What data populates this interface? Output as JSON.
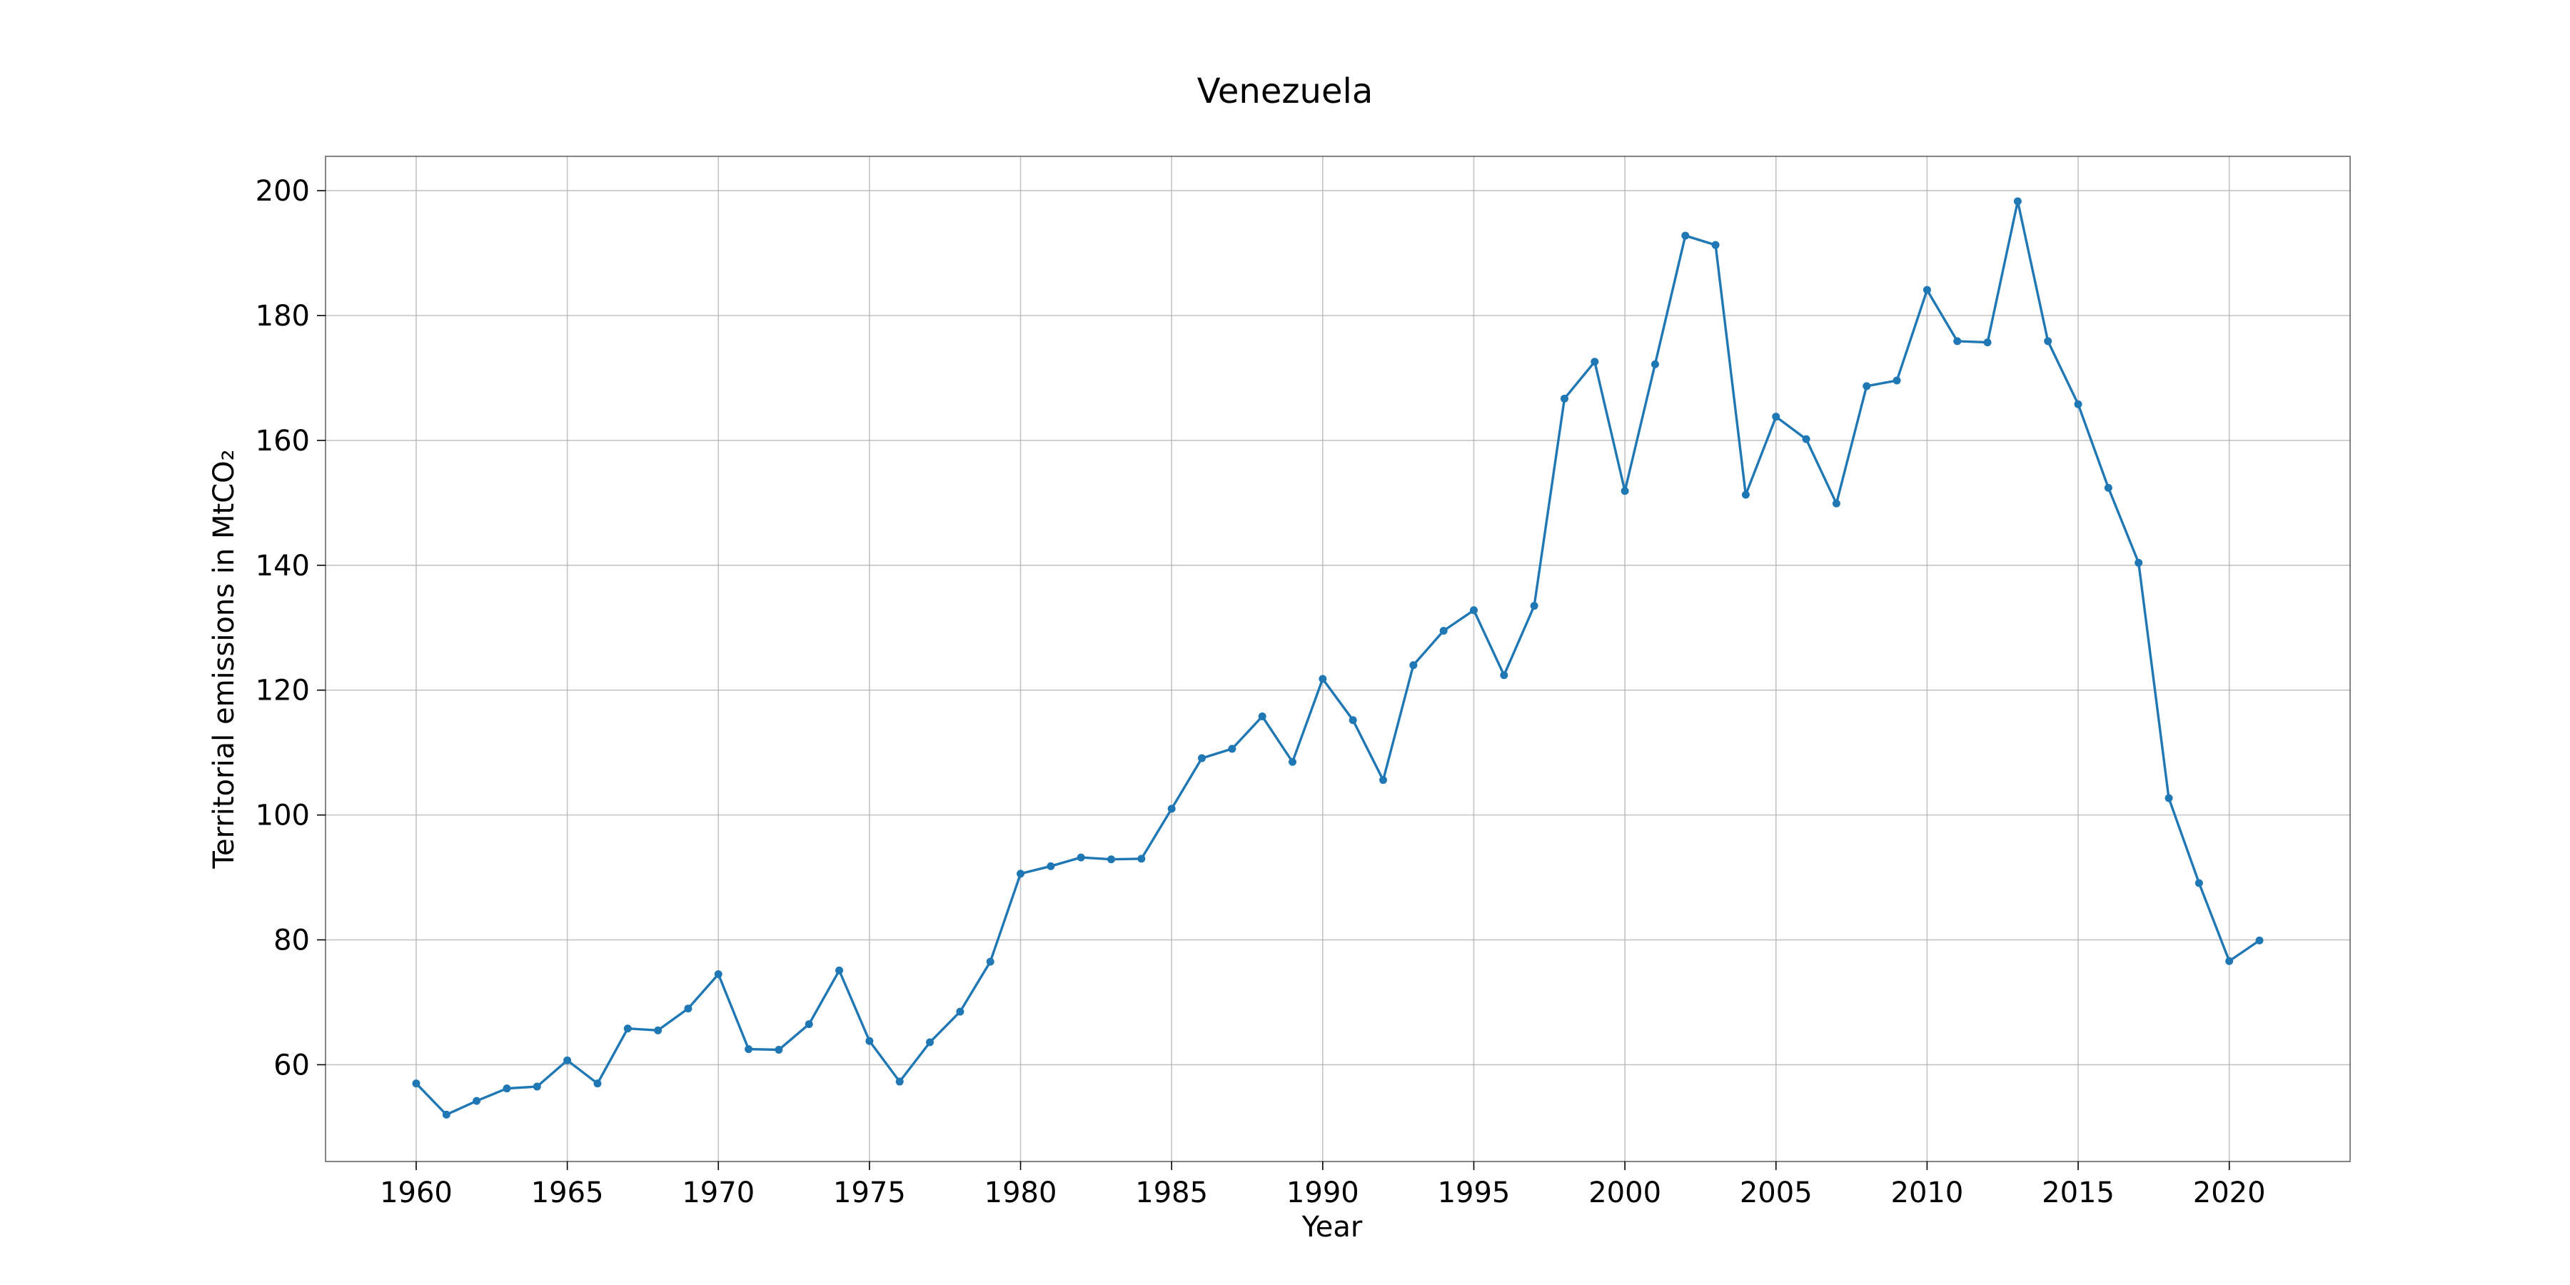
{
  "chart_data": {
    "type": "line",
    "title": "Venezuela",
    "xlabel": "Year",
    "ylabel": "Territorial emissions in MtCO₂",
    "xlim": [
      1957,
      2024
    ],
    "ylim": [
      44.5,
      205.5
    ],
    "xticks": [
      1960,
      1965,
      1970,
      1975,
      1980,
      1985,
      1990,
      1995,
      2000,
      2005,
      2010,
      2015,
      2020
    ],
    "yticks": [
      60,
      80,
      100,
      120,
      140,
      160,
      180,
      200
    ],
    "grid": true,
    "color": "#1f77b4",
    "x": [
      1960,
      1961,
      1962,
      1963,
      1964,
      1965,
      1966,
      1967,
      1968,
      1969,
      1970,
      1971,
      1972,
      1973,
      1974,
      1975,
      1976,
      1977,
      1978,
      1979,
      1980,
      1981,
      1982,
      1983,
      1984,
      1985,
      1986,
      1987,
      1988,
      1989,
      1990,
      1991,
      1992,
      1993,
      1994,
      1995,
      1996,
      1997,
      1998,
      1999,
      2000,
      2001,
      2002,
      2003,
      2004,
      2005,
      2006,
      2007,
      2008,
      2009,
      2010,
      2011,
      2012,
      2013,
      2014,
      2015,
      2016,
      2017,
      2018,
      2019,
      2020,
      2021
    ],
    "y": [
      57.0,
      52.0,
      54.2,
      56.2,
      56.5,
      60.7,
      57.0,
      65.8,
      65.5,
      69.0,
      74.5,
      62.5,
      62.4,
      66.5,
      75.1,
      63.8,
      57.3,
      63.6,
      68.5,
      76.5,
      90.6,
      91.8,
      93.2,
      92.9,
      93.0,
      101.0,
      109.1,
      110.6,
      115.8,
      108.5,
      121.8,
      115.2,
      105.6,
      124.0,
      129.5,
      132.8,
      122.4,
      133.5,
      166.7,
      172.6,
      151.9,
      172.2,
      192.8,
      191.3,
      151.3,
      163.8,
      160.2,
      149.9,
      168.7,
      169.6,
      184.1,
      175.9,
      175.7,
      198.3,
      175.9,
      165.8,
      152.4,
      140.4,
      102.7,
      89.1,
      76.6,
      79.9
    ]
  }
}
